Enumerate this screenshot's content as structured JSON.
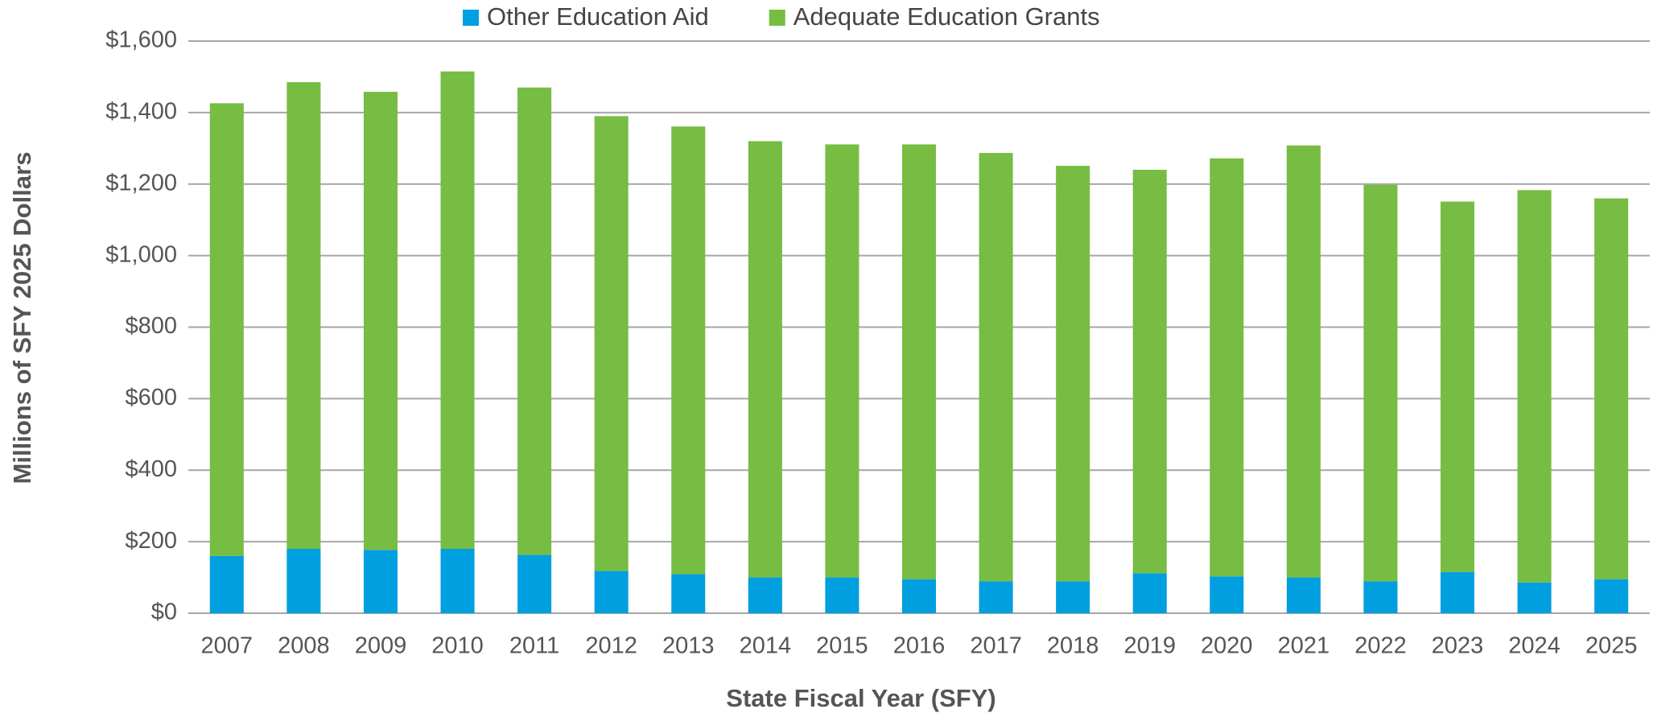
{
  "chart_data": {
    "type": "stacked_bar",
    "categories": [
      "2007",
      "2008",
      "2009",
      "2010",
      "2011",
      "2012",
      "2013",
      "2014",
      "2015",
      "2016",
      "2017",
      "2018",
      "2019",
      "2020",
      "2021",
      "2022",
      "2023",
      "2024",
      "2025"
    ],
    "series": [
      {
        "name": "Other Education Aid",
        "color": "#009fdf",
        "values": [
          160,
          180,
          177,
          180,
          163,
          118,
          109,
          100,
          100,
          95,
          89,
          89,
          112,
          103,
          100,
          89,
          115,
          86,
          95
        ]
      },
      {
        "name": "Adequate Education Grants",
        "color": "#77bc43",
        "values": [
          1266,
          1305,
          1281,
          1335,
          1307,
          1272,
          1252,
          1220,
          1211,
          1216,
          1198,
          1162,
          1128,
          1169,
          1208,
          1109,
          1036,
          1097,
          1065
        ]
      }
    ],
    "xlabel": "State Fiscal Year (SFY)",
    "ylabel": "Millions of SFY 2025 Dollars",
    "ylim": [
      0,
      1600
    ],
    "yticks": [
      {
        "value": 0,
        "label": "$0"
      },
      {
        "value": 200,
        "label": "$200"
      },
      {
        "value": 400,
        "label": "$400"
      },
      {
        "value": 600,
        "label": "$600"
      },
      {
        "value": 800,
        "label": "$800"
      },
      {
        "value": 1000,
        "label": "$1,000"
      },
      {
        "value": 1200,
        "label": "$1,200"
      },
      {
        "value": 1400,
        "label": "$1,400"
      },
      {
        "value": 1600,
        "label": "$1,600"
      }
    ],
    "grid": true,
    "legend": "top"
  }
}
